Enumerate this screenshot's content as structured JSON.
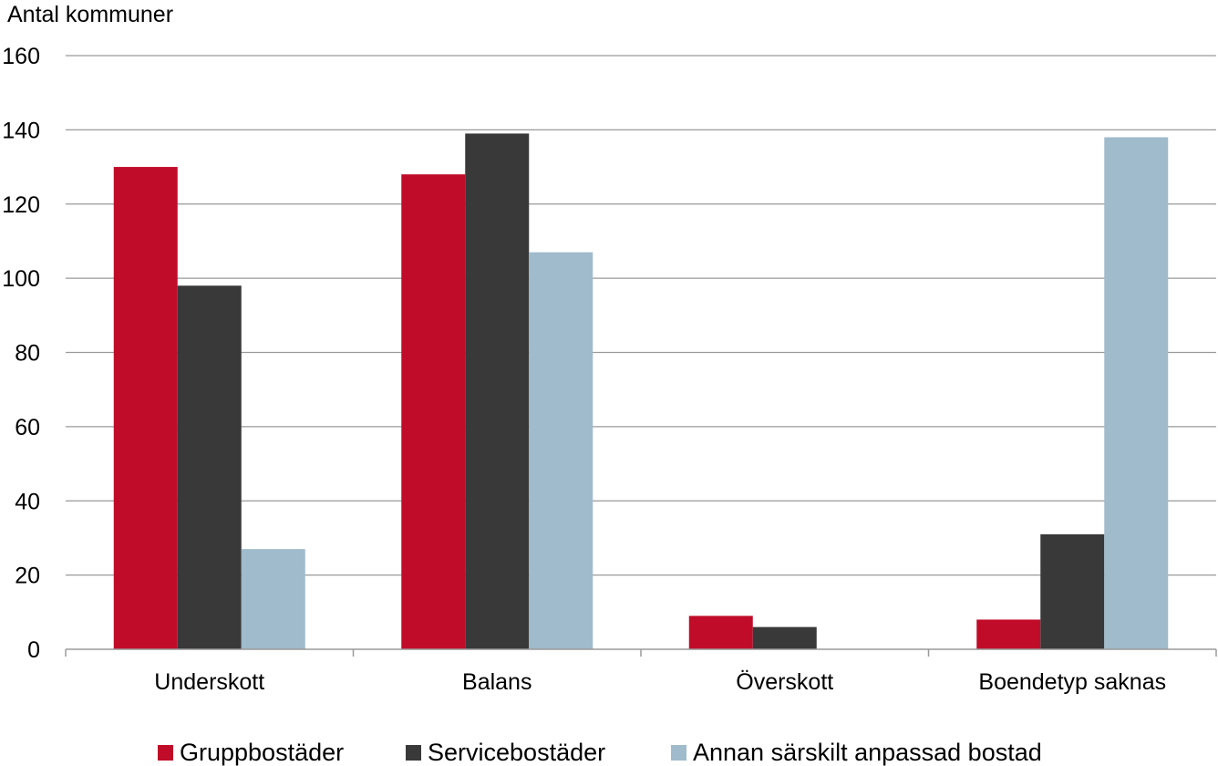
{
  "chart_data": {
    "type": "bar",
    "ylabel": "Antal kommuner",
    "categories": [
      "Underskott",
      "Balans",
      "Överskott",
      "Boendetyp saknas"
    ],
    "series": [
      {
        "name": "Gruppbostäder",
        "color": "#c00c28",
        "values": [
          130,
          128,
          9,
          8
        ]
      },
      {
        "name": "Servicebostäder",
        "color": "#393939",
        "values": [
          98,
          139,
          6,
          31
        ]
      },
      {
        "name": "Annan särskilt anpassad bostad",
        "color": "#9fbbcc",
        "values": [
          27,
          107,
          0,
          138
        ]
      }
    ],
    "ylim": [
      0,
      160
    ],
    "yticks": [
      0,
      20,
      40,
      60,
      80,
      100,
      120,
      140,
      160
    ],
    "grid": true,
    "legend_position": "bottom"
  }
}
